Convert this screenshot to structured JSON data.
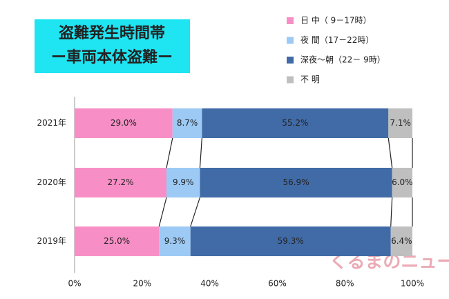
{
  "chart_data": {
    "type": "stacked-bar-horizontal",
    "title": "盗難発生時間帯",
    "subtitle": "ー車両本体盗難ー",
    "categories": [
      "2021年",
      "2020年",
      "2019年"
    ],
    "series": [
      {
        "name": "日 中（ 9－17時）",
        "color": "#f78fc6",
        "values": [
          29.0,
          27.2,
          25.0
        ],
        "value_labels": [
          "29.0%",
          "27.2%",
          "25.0%"
        ]
      },
      {
        "name": "夜 間（17－22時）",
        "color": "#9ccaf5",
        "values": [
          8.7,
          9.9,
          9.3
        ],
        "value_labels": [
          "8.7%",
          "9.9%",
          "9.3%"
        ]
      },
      {
        "name": "深夜～朝（22－ 9時）",
        "color": "#416ba6",
        "values": [
          55.2,
          56.9,
          59.3
        ],
        "value_labels": [
          "55.2%",
          "56.9%",
          "59.3%"
        ]
      },
      {
        "name": "不 明",
        "color": "#bfbfbf",
        "values": [
          7.1,
          6.0,
          6.4
        ],
        "value_labels": [
          "7.1%",
          "6.0%",
          "6.4%"
        ]
      }
    ],
    "xlim": [
      0,
      100
    ],
    "xticks": [
      {
        "value": 0,
        "label": "0%"
      },
      {
        "value": 20,
        "label": "20%"
      },
      {
        "value": 40,
        "label": "40%"
      },
      {
        "value": 60,
        "label": "60%"
      },
      {
        "value": 80,
        "label": "80%"
      },
      {
        "value": 100,
        "label": "100%"
      }
    ],
    "watermark": "くるまのニュース"
  }
}
